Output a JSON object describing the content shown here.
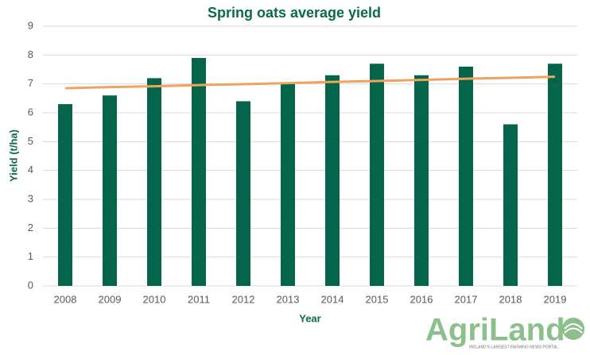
{
  "chart_data": {
    "type": "bar",
    "title": "Spring oats average yield",
    "x_label": "Year",
    "y_label": "Yield (t/ha)",
    "categories": [
      "2008",
      "2009",
      "2010",
      "2011",
      "2012",
      "2013",
      "2014",
      "2015",
      "2016",
      "2017",
      "2018",
      "2019"
    ],
    "series": [
      {
        "type": "bar",
        "color": "#04654a",
        "values": [
          6.3,
          6.6,
          7.2,
          7.9,
          6.4,
          7.0,
          7.3,
          7.7,
          7.3,
          7.6,
          5.6,
          7.7
        ]
      },
      {
        "type": "line",
        "color": "#f0a35e",
        "values": [
          6.85,
          6.89,
          6.92,
          6.96,
          6.99,
          7.03,
          7.07,
          7.1,
          7.14,
          7.18,
          7.21,
          7.25
        ]
      }
    ],
    "ylim": [
      0,
      9
    ],
    "yticks": [
      0,
      1,
      2,
      3,
      4,
      5,
      6,
      7,
      8,
      9
    ],
    "grid": true
  },
  "logo": {
    "name": "AgriLand",
    "tagline": "IRELAND'S LARGEST FARMING NEWS PORTAL"
  }
}
